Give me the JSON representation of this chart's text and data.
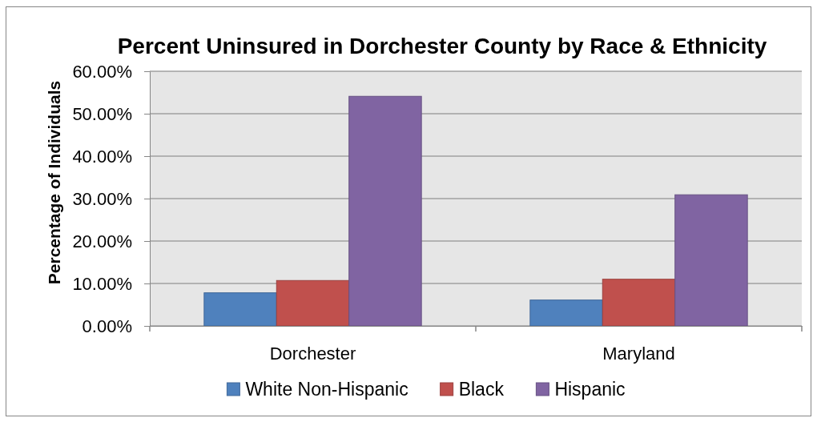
{
  "chart_data": {
    "type": "bar",
    "title": "Percent Uninsured in Dorchester County by Race & Ethnicity",
    "ylabel": "Percentage of Individuals",
    "categories": [
      "Dorchester",
      "Maryland"
    ],
    "series": [
      {
        "name": "White Non-Hispanic",
        "color": "#4f81bd",
        "values": [
          7.8,
          6.1
        ]
      },
      {
        "name": "Black",
        "color": "#c0504d",
        "values": [
          10.7,
          11.0
        ]
      },
      {
        "name": "Hispanic",
        "color": "#8064a2",
        "values": [
          54.1,
          30.9
        ]
      }
    ],
    "ylim": [
      0,
      60
    ],
    "yticks": [
      {
        "value": 0,
        "label": "0.00%"
      },
      {
        "value": 10,
        "label": "10.00%"
      },
      {
        "value": 20,
        "label": "20.00%"
      },
      {
        "value": 30,
        "label": "30.00%"
      },
      {
        "value": 40,
        "label": "40.00%"
      },
      {
        "value": 50,
        "label": "50.00%"
      },
      {
        "value": 60,
        "label": "60.00%"
      }
    ],
    "grid": "y",
    "legend": "bottom"
  }
}
